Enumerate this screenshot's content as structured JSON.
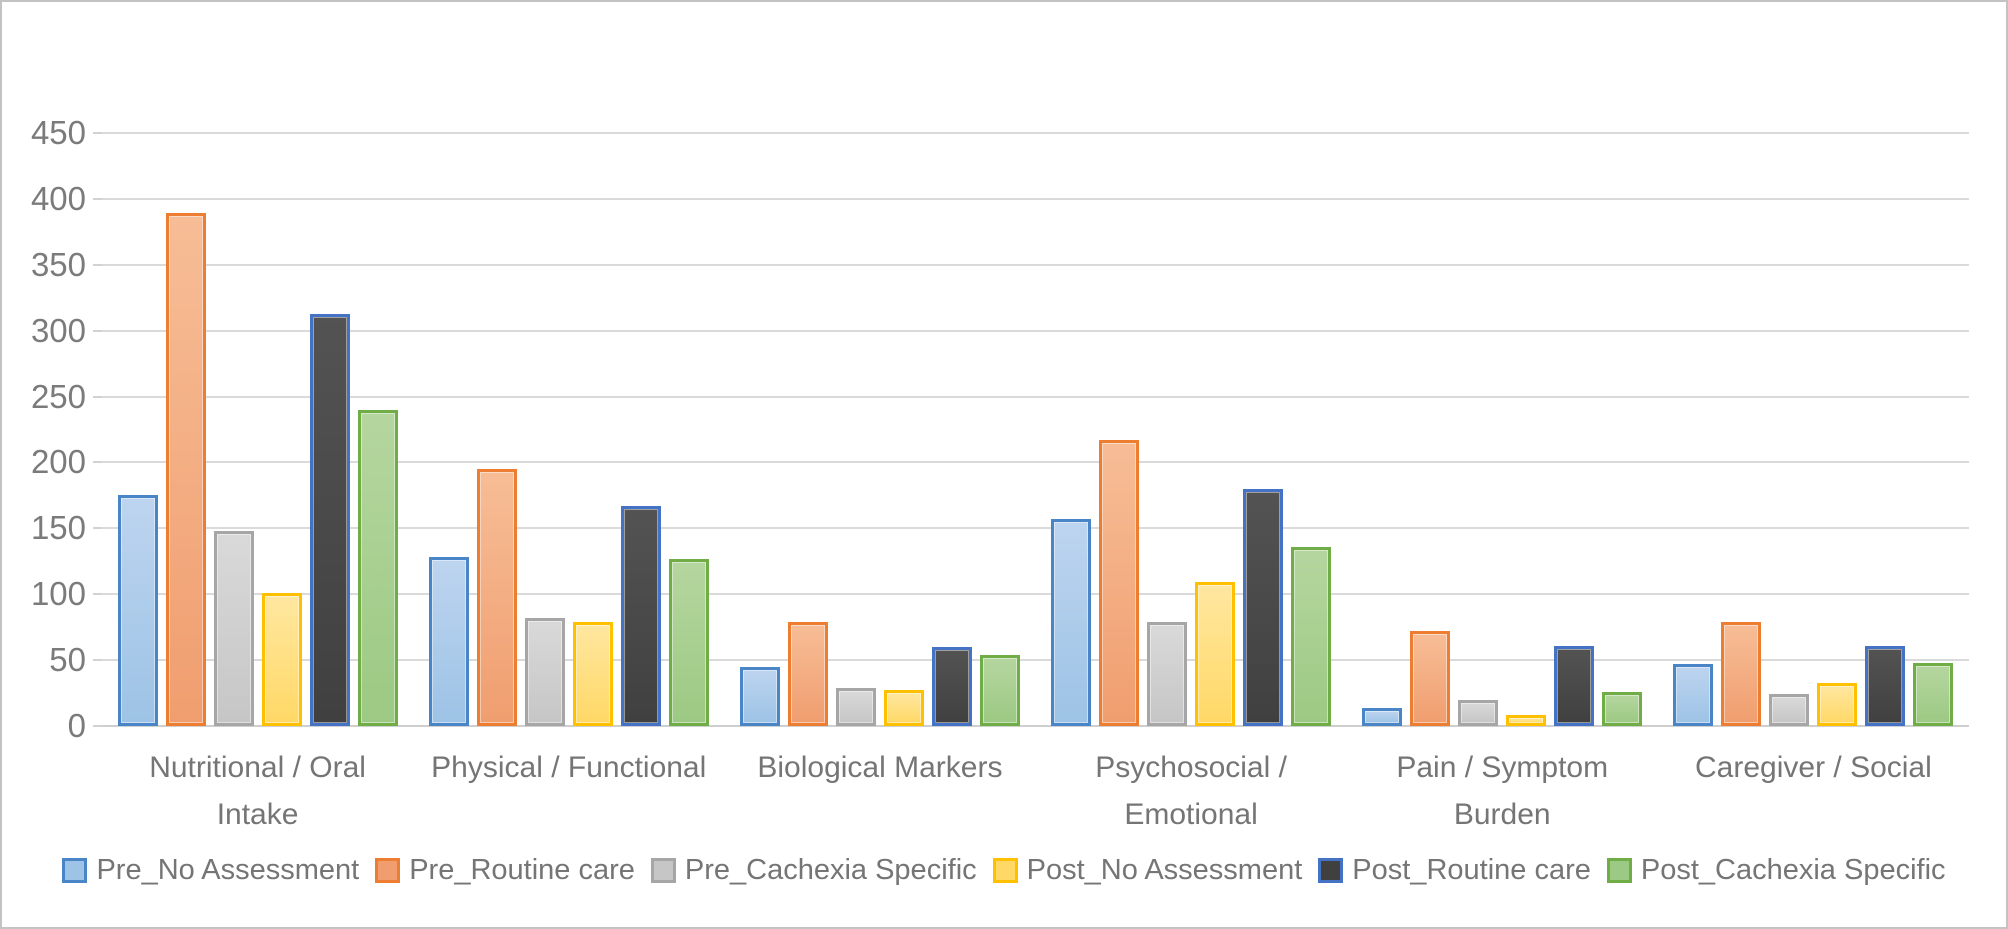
{
  "chart_data": {
    "type": "bar",
    "categories": [
      "Nutritional / Oral Intake",
      "Physical / Functional",
      "Biological Markers",
      "Psychosocial / Emotional",
      "Pain / Symptom Burden",
      "Caregiver / Social"
    ],
    "category_lines": [
      [
        "Nutritional / Oral",
        "Intake"
      ],
      [
        "Physical / Functional"
      ],
      [
        "Biological Markers"
      ],
      [
        "Psychosocial /",
        "Emotional"
      ],
      [
        "Pain / Symptom",
        "Burden"
      ],
      [
        "Caregiver / Social"
      ]
    ],
    "series": [
      {
        "name": "Pre_No Assessment",
        "values": [
          175,
          128,
          45,
          157,
          14,
          47
        ],
        "fill_top": "#bdd4ef",
        "fill_bottom": "#9dc3e6",
        "border": "#4a85c8"
      },
      {
        "name": "Pre_Routine care",
        "values": [
          389,
          195,
          79,
          217,
          72,
          79
        ],
        "fill_top": "#f7bd96",
        "fill_bottom": "#f09e6f",
        "border": "#ed7d31"
      },
      {
        "name": "Pre_Cachexia Specific",
        "values": [
          148,
          82,
          29,
          79,
          20,
          24
        ],
        "fill_top": "#d9d9d9",
        "fill_bottom": "#c6c6c6",
        "border": "#a6a6a6"
      },
      {
        "name": "Post_No Assessment",
        "values": [
          101,
          79,
          27,
          109,
          8,
          33
        ],
        "fill_top": "#ffe7a0",
        "fill_bottom": "#ffd866",
        "border": "#ffc000"
      },
      {
        "name": "Post_Routine care",
        "values": [
          313,
          167,
          60,
          180,
          61,
          61
        ],
        "fill_top": "#535353",
        "fill_bottom": "#404040",
        "border": "#4472c4"
      },
      {
        "name": "Post_Cachexia Specific",
        "values": [
          240,
          127,
          54,
          136,
          26,
          48
        ],
        "fill_top": "#b5d69f",
        "fill_bottom": "#9cc983",
        "border": "#70ad47"
      }
    ],
    "title": "",
    "xlabel": "",
    "ylabel": "",
    "ylim": [
      0,
      450
    ],
    "ytick_step": 50,
    "grid": true,
    "legend_position": "bottom",
    "gridline_color": "#dadada",
    "axis_text_color": "#7b7b7b"
  }
}
